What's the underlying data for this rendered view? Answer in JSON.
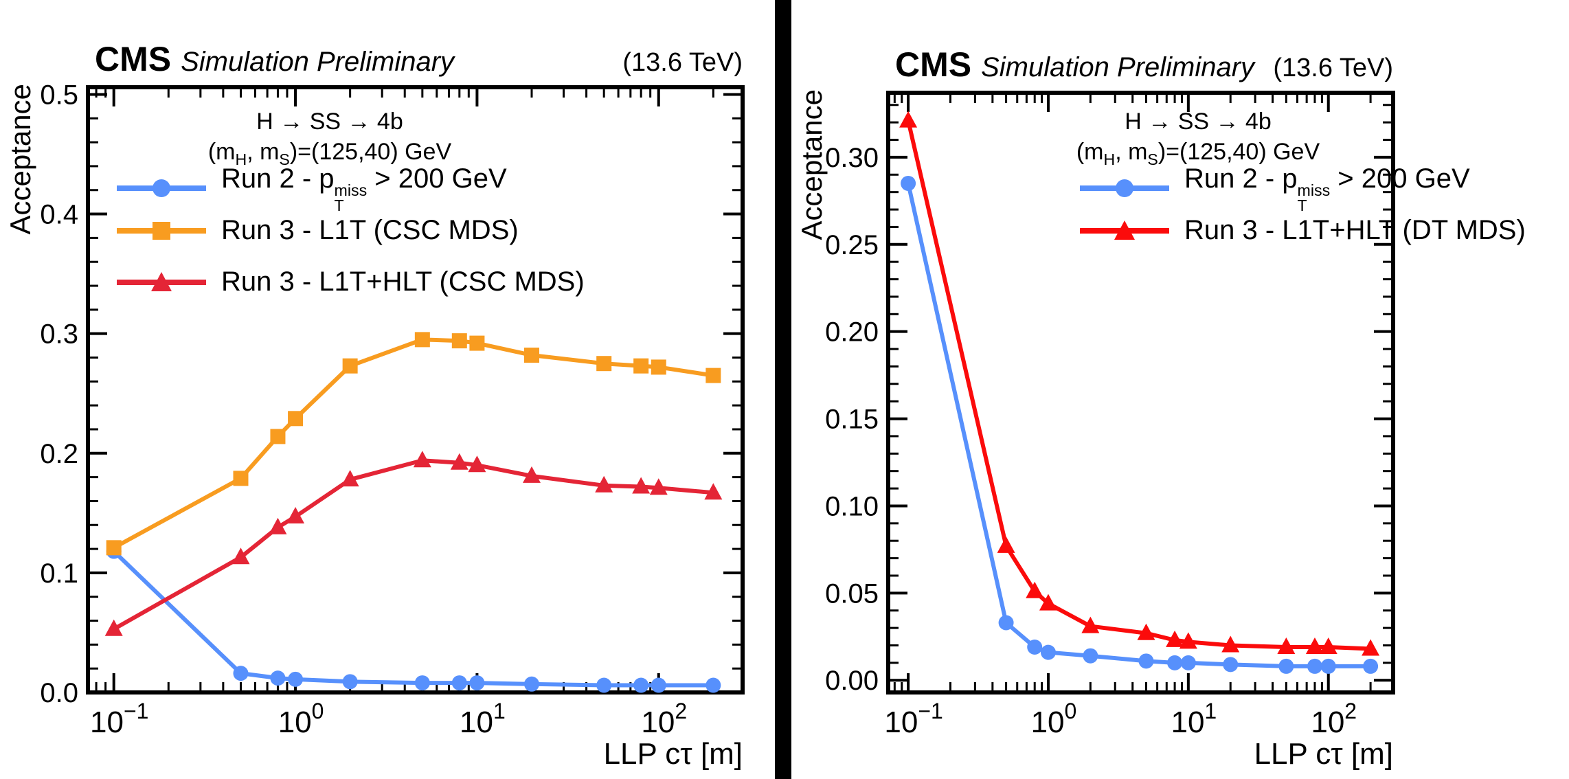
{
  "page": {
    "background": "#ffffff",
    "divider_color": "#000000"
  },
  "chart_data": [
    {
      "type": "line",
      "experiment": "CMS",
      "header_label": "Simulation Preliminary",
      "energy": "(13.6 TeV)",
      "xlabel": "LLP cτ [m]",
      "ylabel": "Acceptance",
      "xscale": "log",
      "xlim": [
        0.072,
        290
      ],
      "ylim": [
        0,
        0.506
      ],
      "grid": false,
      "legend_position": "top-left",
      "yticks": [
        0.0,
        0.1,
        0.2,
        0.3,
        0.4,
        0.5
      ],
      "ytick_labels": [
        "0.0",
        "0.1",
        "0.2",
        "0.3",
        "0.4",
        "0.5"
      ],
      "yminor_step": 0.02,
      "xticks": [
        0.1,
        1,
        10,
        100
      ],
      "xtick_labels": [
        {
          "base": "10",
          "exp": "−1"
        },
        {
          "base": "10",
          "exp": "0"
        },
        {
          "base": "10",
          "exp": "1"
        },
        {
          "base": "10",
          "exp": "2"
        }
      ],
      "annotation_line1": "H → SS → 4b",
      "annotation_line2_segments": [
        {
          "t": "(m"
        },
        {
          "sub": "H"
        },
        {
          "t": ", m"
        },
        {
          "sub": "S"
        },
        {
          "t": ")=(125,40) GeV"
        }
      ],
      "x": [
        0.1,
        0.5,
        0.8,
        1,
        2,
        5,
        8,
        10,
        20,
        50,
        80,
        100,
        200
      ],
      "series": [
        {
          "key": "run2",
          "name": "Run 2 - pTmiss > 200 GeV",
          "label_segments": [
            {
              "t": "Run 2 - p"
            },
            {
              "stack": {
                "sup": "miss",
                "sub": "T"
              }
            },
            {
              "t": " > 200 GeV"
            }
          ],
          "marker": "circle",
          "color": "#5790fc",
          "values": [
            0.118,
            0.016,
            0.012,
            0.011,
            0.009,
            0.008,
            0.008,
            0.008,
            0.007,
            0.006,
            0.006,
            0.006,
            0.006
          ]
        },
        {
          "key": "run3-l1t-csc",
          "name": "Run 3 - L1T (CSC MDS)",
          "label_segments": [
            {
              "t": "Run 3 - L1T (CSC MDS)"
            }
          ],
          "marker": "square",
          "color": "#f89c20",
          "values": [
            0.121,
            0.179,
            0.214,
            0.229,
            0.273,
            0.295,
            0.294,
            0.292,
            0.282,
            0.275,
            0.273,
            0.272,
            0.265
          ]
        },
        {
          "key": "run3-l1t-hlt-csc",
          "name": "Run 3 - L1T+HLT (CSC MDS)",
          "label_segments": [
            {
              "t": "Run 3 - L1T+HLT (CSC MDS)"
            }
          ],
          "marker": "triangle",
          "color": "#e42536",
          "values": [
            0.053,
            0.113,
            0.138,
            0.147,
            0.178,
            0.194,
            0.192,
            0.19,
            0.181,
            0.173,
            0.172,
            0.171,
            0.167
          ]
        }
      ]
    },
    {
      "type": "line",
      "experiment": "CMS",
      "header_label": "Simulation Preliminary",
      "energy": "(13.6 TeV)",
      "xlabel": "LLP cτ [m]",
      "ylabel": "Acceptance",
      "xscale": "log",
      "xlim": [
        0.072,
        290
      ],
      "ylim": [
        -0.007,
        0.337
      ],
      "grid": false,
      "legend_position": "top-left",
      "yticks": [
        0.0,
        0.05,
        0.1,
        0.15,
        0.2,
        0.25,
        0.3
      ],
      "ytick_labels": [
        "0.00",
        "0.05",
        "0.10",
        "0.15",
        "0.20",
        "0.25",
        "0.30"
      ],
      "yminor_step": 0.01,
      "xticks": [
        0.1,
        1,
        10,
        100
      ],
      "xtick_labels": [
        {
          "base": "10",
          "exp": "−1"
        },
        {
          "base": "10",
          "exp": "0"
        },
        {
          "base": "10",
          "exp": "1"
        },
        {
          "base": "10",
          "exp": "2"
        }
      ],
      "annotation_line1": "H → SS → 4b",
      "annotation_line2_segments": [
        {
          "t": "(m"
        },
        {
          "sub": "H"
        },
        {
          "t": ", m"
        },
        {
          "sub": "S"
        },
        {
          "t": ")=(125,40) GeV"
        }
      ],
      "x": [
        0.1,
        0.5,
        0.8,
        1,
        2,
        5,
        8,
        10,
        20,
        50,
        80,
        100,
        200
      ],
      "series": [
        {
          "key": "run2",
          "name": "Run 2 - pTmiss > 200 GeV",
          "label_segments": [
            {
              "t": "Run 2 - p"
            },
            {
              "stack": {
                "sup": "miss",
                "sub": "T"
              }
            },
            {
              "t": " > 200 GeV"
            }
          ],
          "marker": "circle",
          "color": "#5790fc",
          "values": [
            0.285,
            0.033,
            0.019,
            0.016,
            0.014,
            0.011,
            0.01,
            0.01,
            0.009,
            0.008,
            0.008,
            0.008,
            0.008
          ]
        },
        {
          "key": "run3-l1t-hlt-dt",
          "name": "Run 3 - L1T+HLT (DT MDS)",
          "label_segments": [
            {
              "t": "Run 3 - L1T+HLT (DT MDS)"
            }
          ],
          "marker": "triangle",
          "color": "#fb0b0b",
          "values": [
            0.321,
            0.077,
            0.051,
            0.044,
            0.031,
            0.027,
            0.023,
            0.022,
            0.02,
            0.019,
            0.019,
            0.019,
            0.018
          ]
        }
      ]
    }
  ]
}
